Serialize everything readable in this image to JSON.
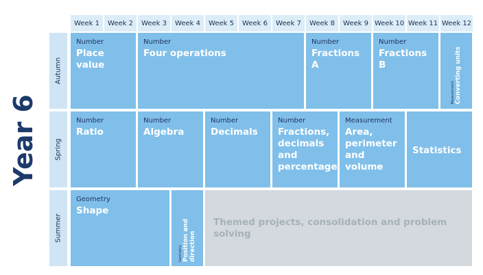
{
  "year_title": "Year 6",
  "weeks": [
    "Week 1",
    "Week 2",
    "Week 3",
    "Week 4",
    "Week 5",
    "Week 6",
    "Week 7",
    "Week 8",
    "Week 9",
    "Week 10",
    "Week 11",
    "Week 12"
  ],
  "terms": [
    {
      "name": "Autumn",
      "blocks": [
        {
          "label": "Number",
          "title": "Place value",
          "span": 2
        },
        {
          "label": "Number",
          "title": "Four operations",
          "span": 5
        },
        {
          "label": "Number",
          "title": "Fractions A",
          "span": 2
        },
        {
          "label": "Number",
          "title": "Fractions B",
          "span": 2
        },
        {
          "label": "Measurement",
          "title": "Converting units",
          "span": 1,
          "rotated": true
        }
      ]
    },
    {
      "name": "Spring",
      "blocks": [
        {
          "label": "Number",
          "title": "Ratio",
          "span": 2
        },
        {
          "label": "Number",
          "title": "Algebra",
          "span": 2
        },
        {
          "label": "Number",
          "title": "Decimals",
          "span": 2
        },
        {
          "label": "Number",
          "title": "Fractions, decimals and percentages",
          "span": 2
        },
        {
          "label": "Measurement",
          "title": "Area, perimeter and volume",
          "span": 2
        },
        {
          "title": "Statistics",
          "span": 2
        }
      ]
    },
    {
      "name": "Summer",
      "blocks": [
        {
          "label": "Geometry",
          "title": "Shape",
          "span": 3
        },
        {
          "label": "Geometry",
          "title": "Position and direction",
          "span": 1,
          "rotated": true
        },
        {
          "title": "Themed projects, consolidation and problem solving",
          "span": 8,
          "muted": true
        }
      ]
    }
  ]
}
